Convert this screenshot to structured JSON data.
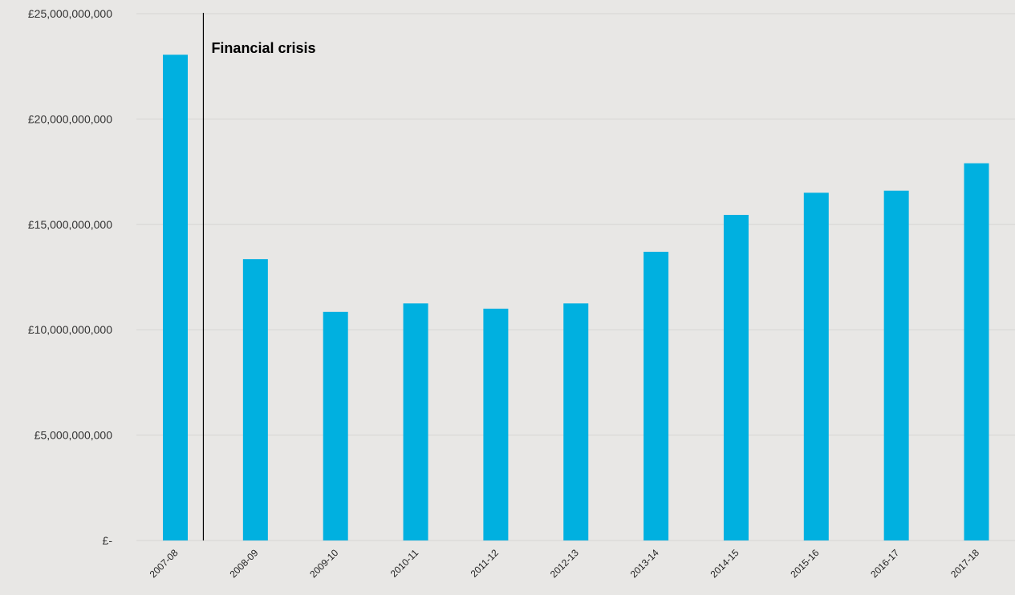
{
  "chart_data": {
    "type": "bar",
    "categories": [
      "2007-08",
      "2008-09",
      "2009-10",
      "2010-11",
      "2011-12",
      "2012-13",
      "2013-14",
      "2014-15",
      "2015-16",
      "2016-17",
      "2017-18"
    ],
    "values": [
      23050000000,
      13350000000,
      10850000000,
      11250000000,
      11000000000,
      11250000000,
      13700000000,
      15450000000,
      16500000000,
      16600000000,
      17900000000
    ],
    "ylim": [
      0,
      25000000000
    ],
    "yticks": [
      0,
      5000000000,
      10000000000,
      15000000000,
      20000000000,
      25000000000
    ],
    "ytick_labels": [
      "£-",
      "£5,000,000,000",
      "£10,000,000,000",
      "£15,000,000,000",
      "£20,000,000,000",
      "£25,000,000,000"
    ],
    "grid": true,
    "bar_color": "#00b0e0",
    "annotation": {
      "text": "Financial crisis",
      "after_category": "2007-08"
    }
  }
}
